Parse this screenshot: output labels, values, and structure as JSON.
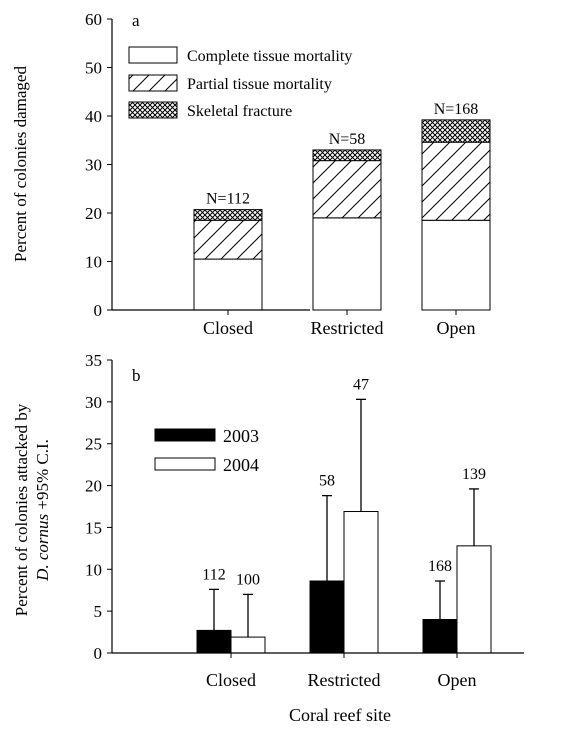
{
  "chart_data": [
    {
      "type": "bar",
      "stacked": true,
      "panel_label": "a",
      "categories": [
        "Closed",
        "Restricted",
        "Open"
      ],
      "ylabel": "Percent of colonies damaged",
      "xlabel": "",
      "ylim": [
        0,
        60
      ],
      "yticks": [
        "0",
        "10",
        "20",
        "30",
        "40",
        "50",
        "60"
      ],
      "legend_position": "top-left",
      "series": [
        {
          "name": "Complete tissue mortality",
          "values": [
            10.5,
            19.0,
            18.5
          ],
          "pattern": "solid-white"
        },
        {
          "name": "Partial tissue mortality",
          "values": [
            8.0,
            11.8,
            16.1
          ],
          "pattern": "diagonal-hatch"
        },
        {
          "name": "Skeletal fracture",
          "values": [
            2.2,
            2.2,
            4.6
          ],
          "pattern": "crosshatch"
        }
      ],
      "annotations": [
        "N=112",
        "N=58",
        "N=168"
      ]
    },
    {
      "type": "bar",
      "panel_label": "b",
      "categories": [
        "Closed",
        "Restricted",
        "Open"
      ],
      "ylabel_line1": "Percent of colonies attacked by",
      "ylabel_line2_italic": "D. cornus",
      "ylabel_line2_rest": " +95% C.I.",
      "xlabel": "Coral reef site",
      "ylim": [
        0,
        35
      ],
      "yticks": [
        "0",
        "5",
        "10",
        "15",
        "20",
        "25",
        "30",
        "35"
      ],
      "legend_position": "top-left",
      "series": [
        {
          "name": "2003",
          "color": "#000000",
          "values": [
            2.7,
            8.6,
            4.0
          ],
          "ci_upper": [
            7.6,
            18.8,
            8.6
          ],
          "n_labels": [
            "112",
            "58",
            "168"
          ]
        },
        {
          "name": "2004",
          "color": "#ffffff",
          "values": [
            1.9,
            16.9,
            12.8
          ],
          "ci_upper": [
            7.0,
            30.3,
            19.6
          ],
          "n_labels": [
            "100",
            "47",
            "139"
          ]
        }
      ]
    }
  ]
}
